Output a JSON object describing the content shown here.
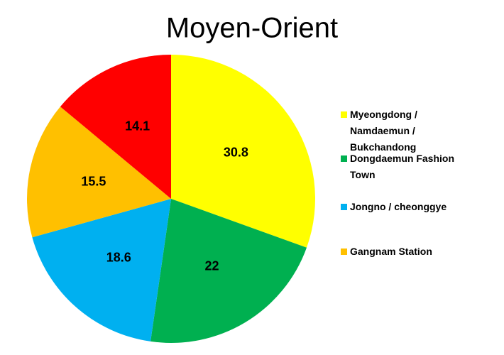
{
  "chart_data": {
    "type": "pie",
    "title": "Moyen-Orient",
    "categories": [
      "Myeongdong / Namdaemun / Bukchandong",
      "Dongdaemun Fashion Town",
      "Jongno / cheonggye",
      "Gangnam Station",
      null
    ],
    "values": [
      30.8,
      22,
      18.6,
      15.5,
      14.1
    ],
    "colors": [
      "#ffff00",
      "#00b050",
      "#00b0f0",
      "#ffc000",
      "#ff0000"
    ],
    "legend": "right"
  }
}
